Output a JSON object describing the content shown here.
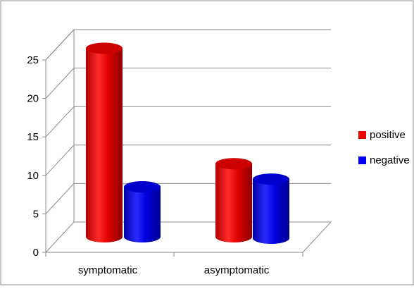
{
  "chart_data": {
    "type": "bar",
    "title": "",
    "xlabel": "",
    "ylabel": "",
    "categories": [
      "symptomatic",
      "asymptomatic"
    ],
    "series": [
      {
        "name": "positive",
        "values": [
          25,
          10
        ],
        "color": "#ee0000"
      },
      {
        "name": "negative",
        "values": [
          7,
          8
        ],
        "color": "#0000ee"
      }
    ],
    "ylim": [
      0,
      25
    ],
    "yticks": [
      "0",
      "5",
      "10",
      "15",
      "20",
      "25"
    ],
    "grid": true,
    "legend": "right",
    "style": "3d-cylinder"
  }
}
